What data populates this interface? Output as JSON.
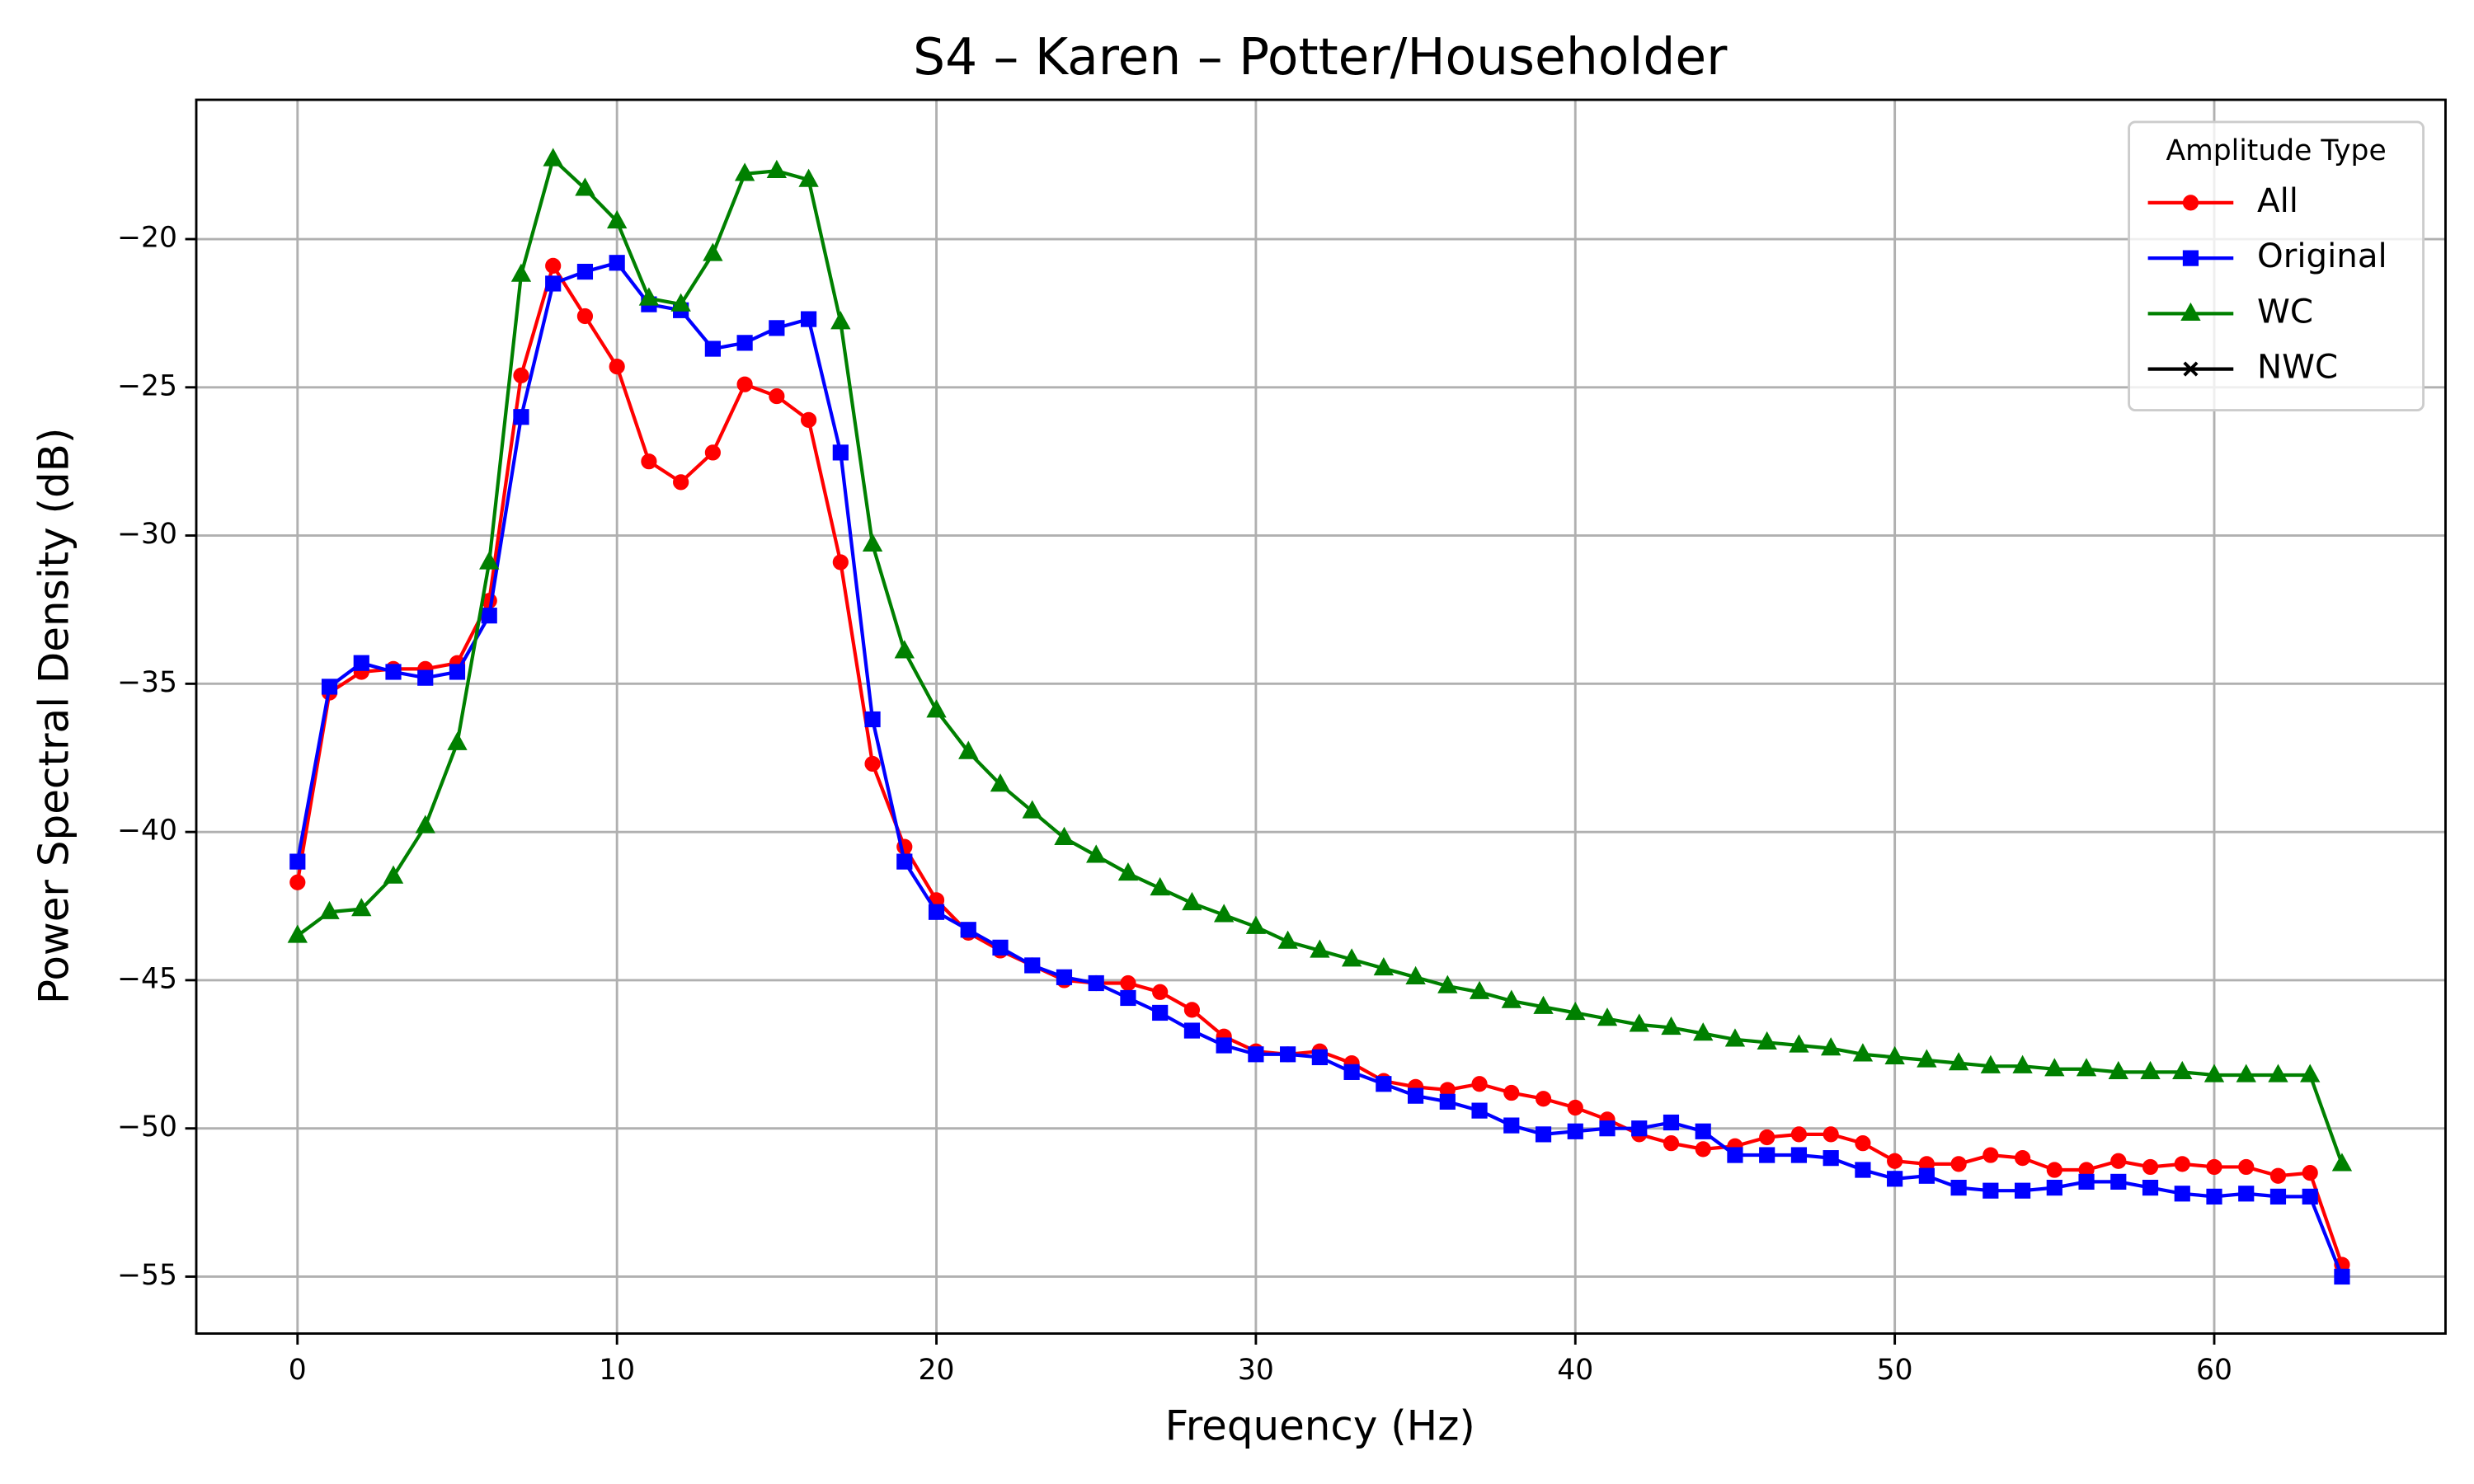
{
  "chart_data": {
    "type": "line",
    "title": "S4 – Karen – Potter/Householder",
    "xlabel": "Frequency (Hz)",
    "ylabel": "Power Spectral Density (dB)",
    "legend_title": "Amplitude Type",
    "legend": "upper right",
    "grid": true,
    "x": [
      0,
      1,
      2,
      3,
      4,
      5,
      6,
      7,
      8,
      9,
      10,
      11,
      12,
      13,
      14,
      15,
      16,
      17,
      18,
      19,
      20,
      21,
      22,
      23,
      24,
      25,
      26,
      27,
      28,
      29,
      30,
      31,
      32,
      33,
      34,
      35,
      36,
      37,
      38,
      39,
      40,
      41,
      42,
      43,
      44,
      45,
      46,
      47,
      48,
      49,
      50,
      51,
      52,
      53,
      54,
      55,
      56,
      57,
      58,
      59,
      60,
      61,
      62,
      63,
      64
    ],
    "xlim": [
      -3.17,
      67.24
    ],
    "ylim": [
      -56.92,
      -15.3
    ],
    "xticks": [
      0,
      10,
      20,
      30,
      40,
      50,
      60
    ],
    "yticks": [
      {
        "value": -55,
        "label": "−55"
      },
      {
        "value": -50,
        "label": "−50"
      },
      {
        "value": -45,
        "label": "−45"
      },
      {
        "value": -40,
        "label": "−40"
      },
      {
        "value": -35,
        "label": "−35"
      },
      {
        "value": -30,
        "label": "−30"
      },
      {
        "value": -25,
        "label": "−25"
      },
      {
        "value": -20,
        "label": "−20"
      }
    ],
    "series": [
      {
        "name": "All",
        "color": "#ff0000",
        "marker": "circle",
        "values": [
          -41.7,
          -35.3,
          -34.6,
          -34.5,
          -34.5,
          -34.3,
          -32.2,
          -24.6,
          -20.9,
          -22.6,
          -24.3,
          -27.5,
          -28.2,
          -27.2,
          -24.9,
          -25.3,
          -26.1,
          -30.9,
          -37.7,
          -40.5,
          -42.3,
          -43.4,
          -44.0,
          -44.5,
          -45.0,
          -45.1,
          -45.1,
          -45.4,
          -46.0,
          -46.9,
          -47.4,
          -47.5,
          -47.4,
          -47.8,
          -48.4,
          -48.6,
          -48.7,
          -48.5,
          -48.8,
          -49.0,
          -49.3,
          -49.7,
          -50.2,
          -50.5,
          -50.7,
          -50.6,
          -50.3,
          -50.2,
          -50.2,
          -50.5,
          -51.1,
          -51.2,
          -51.2,
          -50.9,
          -51.0,
          -51.4,
          -51.4,
          -51.1,
          -51.3,
          -51.2,
          -51.3,
          -51.3,
          -51.6,
          -51.5,
          -54.6
        ]
      },
      {
        "name": "Original",
        "color": "#0000ff",
        "marker": "square",
        "values": [
          -41.0,
          -35.1,
          -34.3,
          -34.6,
          -34.8,
          -34.6,
          -32.7,
          -26.0,
          -21.5,
          -21.1,
          -20.8,
          -22.2,
          -22.4,
          -23.7,
          -23.5,
          -23.0,
          -22.7,
          -27.2,
          -36.2,
          -41.0,
          -42.7,
          -43.3,
          -43.9,
          -44.5,
          -44.9,
          -45.1,
          -45.6,
          -46.1,
          -46.7,
          -47.2,
          -47.5,
          -47.5,
          -47.6,
          -48.1,
          -48.5,
          -48.9,
          -49.1,
          -49.4,
          -49.9,
          -50.2,
          -50.1,
          -50.0,
          -50.0,
          -49.8,
          -50.1,
          -50.9,
          -50.9,
          -50.9,
          -51.0,
          -51.4,
          -51.7,
          -51.6,
          -52.0,
          -52.1,
          -52.1,
          -52.0,
          -51.8,
          -51.8,
          -52.0,
          -52.2,
          -52.3,
          -52.2,
          -52.3,
          -52.3,
          -55.0
        ]
      },
      {
        "name": "WC",
        "color": "#008000",
        "marker": "triangle",
        "values": [
          -43.5,
          -42.7,
          -42.6,
          -41.5,
          -39.8,
          -37.0,
          -30.9,
          -21.2,
          -17.3,
          -18.3,
          -19.4,
          -22.0,
          -22.2,
          -20.5,
          -17.8,
          -17.7,
          -18.0,
          -22.8,
          -30.3,
          -33.9,
          -35.9,
          -37.3,
          -38.4,
          -39.3,
          -40.2,
          -40.8,
          -41.4,
          -41.9,
          -42.4,
          -42.8,
          -43.2,
          -43.7,
          -44.0,
          -44.3,
          -44.6,
          -44.9,
          -45.2,
          -45.4,
          -45.7,
          -45.9,
          -46.1,
          -46.3,
          -46.5,
          -46.6,
          -46.8,
          -47.0,
          -47.1,
          -47.2,
          -47.3,
          -47.5,
          -47.6,
          -47.7,
          -47.8,
          -47.9,
          -47.9,
          -48.0,
          -48.0,
          -48.1,
          -48.1,
          -48.1,
          -48.2,
          -48.2,
          -48.2,
          -48.2,
          -51.2
        ]
      },
      {
        "name": "NWC",
        "color": "#000000",
        "marker": "x",
        "values": [
          null,
          null,
          null,
          null,
          null,
          null,
          null,
          null,
          null,
          null,
          null,
          null,
          null,
          null,
          null,
          null,
          null,
          null,
          null,
          null,
          null,
          null,
          null,
          null,
          null,
          null,
          null,
          null,
          null,
          null,
          null,
          null,
          null,
          null,
          null,
          null,
          null,
          null,
          null,
          null,
          null,
          null,
          null,
          null,
          null,
          null,
          null,
          null,
          null,
          null,
          null,
          null,
          null,
          null,
          null,
          null,
          null,
          null,
          null,
          null,
          null,
          null,
          null,
          null,
          null
        ]
      }
    ]
  }
}
